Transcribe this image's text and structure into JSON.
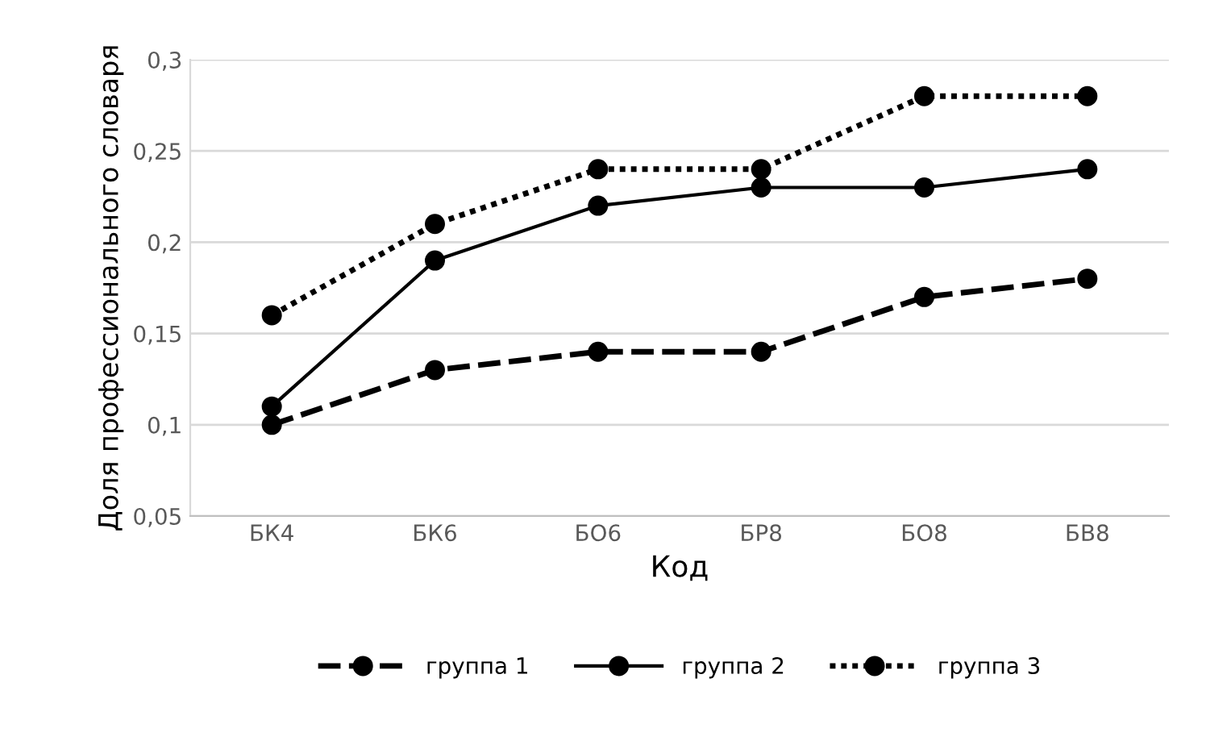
{
  "chart_data": {
    "type": "line",
    "xlabel": "Код",
    "ylabel": "Доля профессионального словаря",
    "categories": [
      "БК4",
      "БК6",
      "БО6",
      "БР8",
      "БО8",
      "БВ8"
    ],
    "series": [
      {
        "name": "группа 1",
        "color": "#000000",
        "line_style": "dashed",
        "values": [
          0.1,
          0.13,
          0.14,
          0.14,
          0.17,
          0.18
        ]
      },
      {
        "name": "группа 2",
        "color": "#000000",
        "line_style": "solid",
        "values": [
          0.11,
          0.19,
          0.22,
          0.23,
          0.23,
          0.24
        ]
      },
      {
        "name": "группа 3",
        "color": "#000000",
        "line_style": "dotted",
        "values": [
          0.16,
          0.21,
          0.24,
          0.24,
          0.28,
          0.28
        ]
      }
    ],
    "ylim": [
      0.05,
      0.3
    ],
    "yticks": [
      {
        "value": 0.05,
        "label": "0,05"
      },
      {
        "value": 0.1,
        "label": "0,1"
      },
      {
        "value": 0.15,
        "label": "0,15"
      },
      {
        "value": 0.2,
        "label": "0,2"
      },
      {
        "value": 0.25,
        "label": "0,25"
      },
      {
        "value": 0.3,
        "label": "0,3"
      }
    ],
    "grid": "y",
    "legend": "bottom",
    "marker": "circle"
  }
}
